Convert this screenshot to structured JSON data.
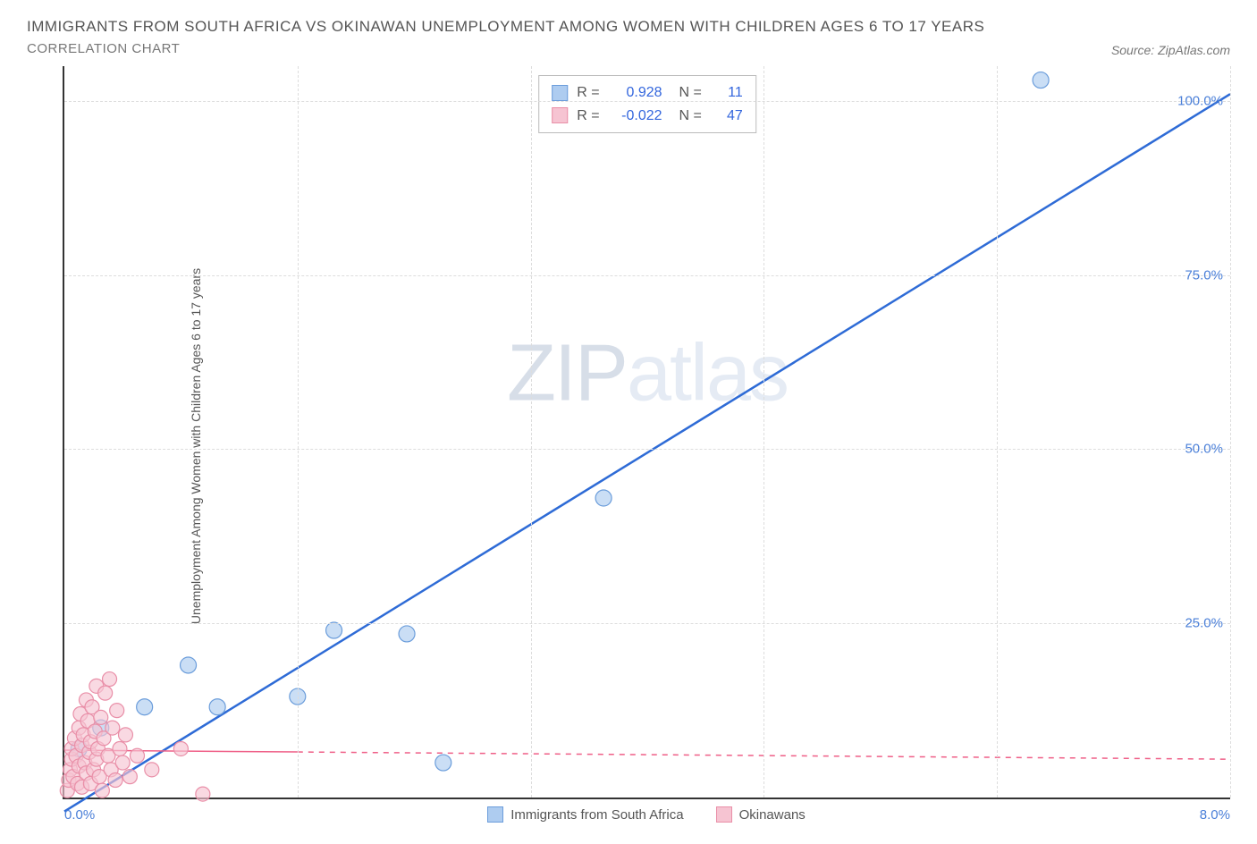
{
  "title": "IMMIGRANTS FROM SOUTH AFRICA VS OKINAWAN UNEMPLOYMENT AMONG WOMEN WITH CHILDREN AGES 6 TO 17 YEARS",
  "subtitle": "CORRELATION CHART",
  "source_label": "Source: ZipAtlas.com",
  "y_axis_label": "Unemployment Among Women with Children Ages 6 to 17 years",
  "watermark_a": "ZIP",
  "watermark_b": "atlas",
  "chart": {
    "type": "scatter",
    "background_color": "#ffffff",
    "grid_color": "#dddddd",
    "axis_color": "#333333",
    "tick_color": "#4a7fd8",
    "xlim": [
      0.0,
      8.0
    ],
    "ylim": [
      0.0,
      105.0
    ],
    "x_ticks": [
      {
        "v": 0.0,
        "label": "0.0%",
        "pos": "left"
      },
      {
        "v": 8.0,
        "label": "8.0%",
        "pos": "right"
      }
    ],
    "y_ticks": [
      {
        "v": 25.0,
        "label": "25.0%"
      },
      {
        "v": 50.0,
        "label": "50.0%"
      },
      {
        "v": 75.0,
        "label": "75.0%"
      },
      {
        "v": 100.0,
        "label": "100.0%"
      }
    ],
    "x_gridlines": [
      1.6,
      3.2,
      4.8,
      6.4,
      8.0
    ]
  },
  "series": [
    {
      "key": "sa",
      "name": "Immigrants from South Africa",
      "fill": "#aeccf0",
      "stroke": "#6b9ddb",
      "line_color": "#2e6bd6",
      "line_dash": "none",
      "line_width": 2.5,
      "marker_r": 9,
      "stats": {
        "R": "0.928",
        "N": "11"
      },
      "trend": {
        "x1": 0.0,
        "y1": -2.0,
        "x2": 8.0,
        "y2": 101.0
      },
      "points": [
        [
          0.1,
          7.0
        ],
        [
          0.25,
          10.0
        ],
        [
          0.55,
          13.0
        ],
        [
          0.85,
          19.0
        ],
        [
          1.05,
          13.0
        ],
        [
          1.6,
          14.5
        ],
        [
          1.85,
          24.0
        ],
        [
          2.35,
          23.5
        ],
        [
          2.6,
          5.0
        ],
        [
          3.7,
          43.0
        ],
        [
          6.7,
          103.0
        ]
      ]
    },
    {
      "key": "ok",
      "name": "Okinawans",
      "fill": "#f6c4d2",
      "stroke": "#e98fa8",
      "line_color": "#ef5f87",
      "line_dash": "6,6",
      "line_solid_until_x": 1.6,
      "line_width": 1.5,
      "marker_r": 8,
      "stats": {
        "R": "-0.022",
        "N": "47"
      },
      "trend": {
        "x1": 0.0,
        "y1": 6.8,
        "x2": 8.0,
        "y2": 5.5
      },
      "points": [
        [
          0.02,
          1.0
        ],
        [
          0.03,
          2.5
        ],
        [
          0.04,
          4.0
        ],
        [
          0.05,
          5.5
        ],
        [
          0.05,
          7.0
        ],
        [
          0.06,
          3.0
        ],
        [
          0.07,
          8.5
        ],
        [
          0.08,
          6.0
        ],
        [
          0.09,
          2.0
        ],
        [
          0.1,
          10.0
        ],
        [
          0.1,
          4.5
        ],
        [
          0.11,
          12.0
        ],
        [
          0.12,
          7.5
        ],
        [
          0.12,
          1.5
        ],
        [
          0.13,
          9.0
        ],
        [
          0.14,
          5.0
        ],
        [
          0.15,
          14.0
        ],
        [
          0.15,
          3.5
        ],
        [
          0.16,
          11.0
        ],
        [
          0.17,
          6.5
        ],
        [
          0.18,
          8.0
        ],
        [
          0.18,
          2.0
        ],
        [
          0.19,
          13.0
        ],
        [
          0.2,
          4.0
        ],
        [
          0.21,
          9.5
        ],
        [
          0.22,
          16.0
        ],
        [
          0.22,
          5.5
        ],
        [
          0.23,
          7.0
        ],
        [
          0.24,
          3.0
        ],
        [
          0.25,
          11.5
        ],
        [
          0.26,
          1.0
        ],
        [
          0.27,
          8.5
        ],
        [
          0.28,
          15.0
        ],
        [
          0.3,
          6.0
        ],
        [
          0.31,
          17.0
        ],
        [
          0.32,
          4.0
        ],
        [
          0.33,
          10.0
        ],
        [
          0.35,
          2.5
        ],
        [
          0.36,
          12.5
        ],
        [
          0.38,
          7.0
        ],
        [
          0.4,
          5.0
        ],
        [
          0.42,
          9.0
        ],
        [
          0.45,
          3.0
        ],
        [
          0.5,
          6.0
        ],
        [
          0.6,
          4.0
        ],
        [
          0.8,
          7.0
        ],
        [
          0.95,
          0.5
        ]
      ]
    }
  ],
  "stats_box": {
    "R_label": "R =",
    "N_label": "N ="
  }
}
